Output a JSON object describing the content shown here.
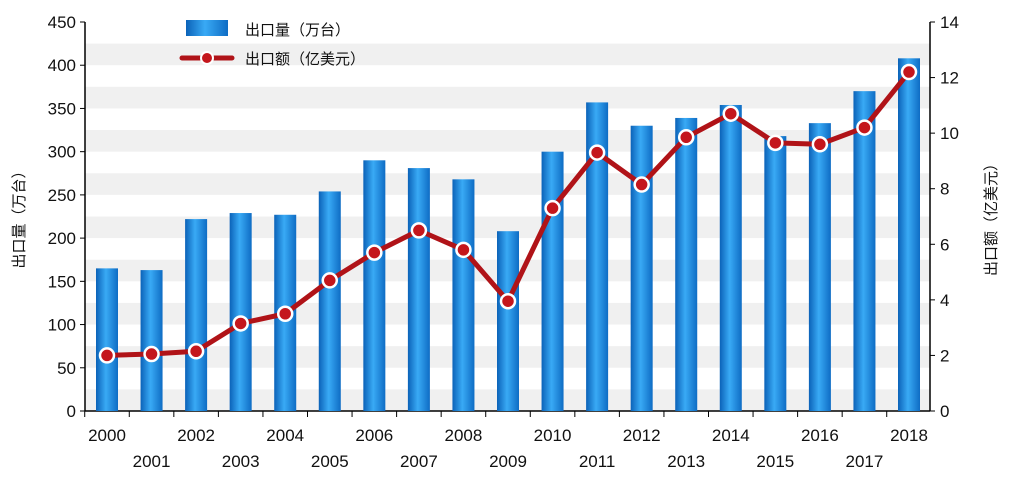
{
  "chart_data": {
    "type": "bar+line",
    "categories": [
      "2000",
      "2001",
      "2002",
      "2003",
      "2004",
      "2005",
      "2006",
      "2007",
      "2008",
      "2009",
      "2010",
      "2011",
      "2012",
      "2013",
      "2014",
      "2015",
      "2016",
      "2017",
      "2018"
    ],
    "series": [
      {
        "name": "出口量（万台）",
        "type": "bar",
        "axis": "left",
        "color": "#1a8fe0",
        "values": [
          165,
          163,
          222,
          229,
          227,
          254,
          290,
          281,
          268,
          208,
          300,
          357,
          330,
          339,
          354,
          318,
          333,
          370,
          408
        ]
      },
      {
        "name": "出口额（亿美元）",
        "type": "line",
        "axis": "right",
        "color": "#b01318",
        "values": [
          2.0,
          2.05,
          2.15,
          3.15,
          3.5,
          4.7,
          5.7,
          6.5,
          5.8,
          3.95,
          7.3,
          9.3,
          8.15,
          9.85,
          10.7,
          9.65,
          9.6,
          10.2,
          12.2
        ]
      }
    ],
    "ylabel": "出口量（万台）",
    "y2label": "出口额（亿美元）",
    "ylim": [
      0,
      450
    ],
    "y2lim": [
      0,
      14
    ],
    "yticks": [
      0,
      50,
      100,
      150,
      200,
      250,
      300,
      350,
      400,
      450
    ],
    "y2ticks": [
      0,
      2,
      4,
      6,
      8,
      10,
      12,
      14
    ],
    "legend": "top-left",
    "grid": "horizontal bands"
  }
}
